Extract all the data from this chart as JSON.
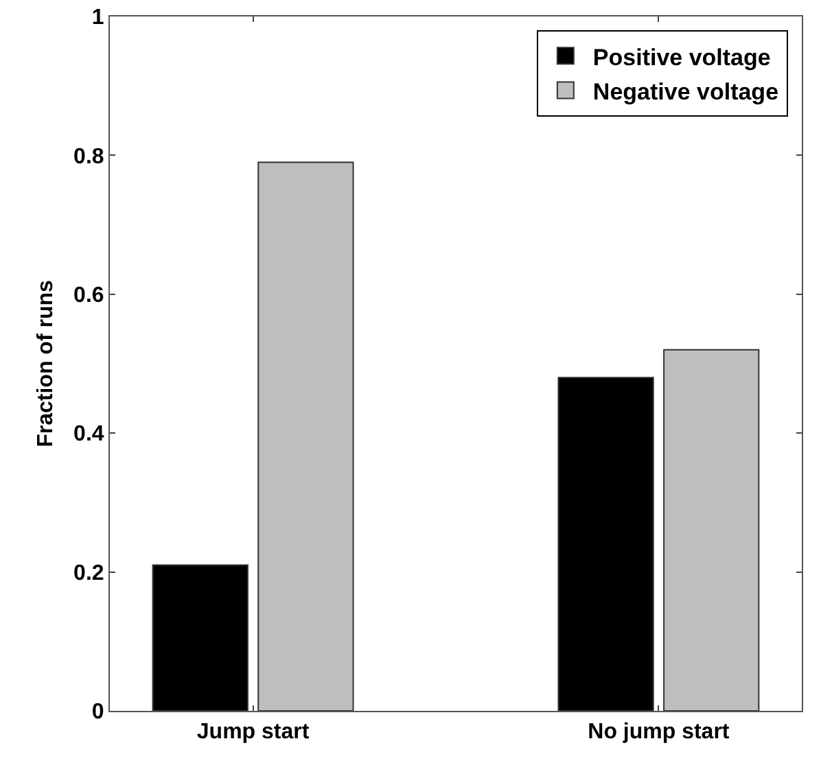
{
  "chart_data": {
    "type": "bar",
    "ylabel": "Fraction of runs",
    "categories": [
      "Jump start",
      "No jump start"
    ],
    "series": [
      {
        "name": "Positive voltage",
        "color": "#000000",
        "values": [
          0.21,
          0.48
        ]
      },
      {
        "name": "Negative voltage",
        "color": "#bebebe",
        "values": [
          0.79,
          0.52
        ]
      }
    ],
    "ylim": [
      0,
      1
    ],
    "yticks": [
      0,
      0.2,
      0.4,
      0.6,
      0.8,
      1
    ],
    "grid": false,
    "legend": "top right"
  }
}
